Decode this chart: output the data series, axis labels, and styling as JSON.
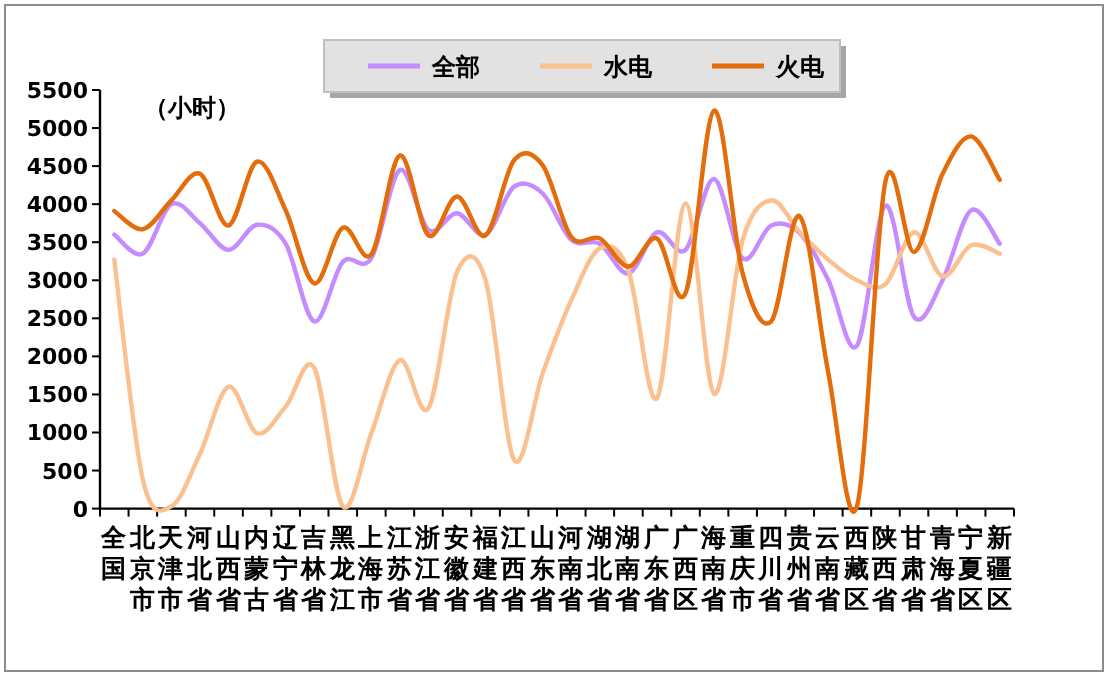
{
  "chart_data": {
    "type": "line",
    "annotations": [
      "（小时）"
    ],
    "categories": [
      "全国",
      "北京市",
      "天津市",
      "河北省",
      "山西省",
      "内蒙古",
      "辽宁省",
      "吉林省",
      "黑龙江",
      "上海市",
      "江苏省",
      "浙江省",
      "安徽省",
      "福建省",
      "江西省",
      "山东省",
      "河南省",
      "湖北省",
      "湖南省",
      "广东省",
      "广西区",
      "海南省",
      "重庆市",
      "四川省",
      "贵州省",
      "云南省",
      "西藏区",
      "陕西省",
      "甘肃省",
      "青海省",
      "宁夏区",
      "新疆区"
    ],
    "series": [
      {
        "name": "全部",
        "color": "#c58cff",
        "values": [
          3600,
          3350,
          4000,
          3750,
          3400,
          3730,
          3480,
          2460,
          3240,
          3290,
          4450,
          3660,
          3880,
          3600,
          4230,
          4140,
          3530,
          3480,
          3090,
          3630,
          3400,
          4330,
          3290,
          3720,
          3620,
          3000,
          2140,
          3980,
          2520,
          3000,
          3920,
          3480
        ]
      },
      {
        "name": "水电",
        "color": "#fbc08f",
        "values": [
          3270,
          380,
          30,
          720,
          1600,
          990,
          1340,
          1850,
          30,
          990,
          1950,
          1320,
          3110,
          3000,
          640,
          1780,
          2740,
          3420,
          3130,
          1450,
          4010,
          1510,
          3530,
          4050,
          3630,
          3270,
          3000,
          2950,
          3630,
          3050,
          3460,
          3350
        ]
      },
      {
        "name": "火电",
        "color": "#e46c0a",
        "values": [
          3910,
          3670,
          4050,
          4400,
          3720,
          4560,
          3920,
          2960,
          3690,
          3340,
          4640,
          3590,
          4100,
          3590,
          4580,
          4510,
          3570,
          3550,
          3180,
          3550,
          2830,
          5230,
          3090,
          2460,
          3840,
          1780,
          30,
          4300,
          3370,
          4400,
          4890,
          4320
        ]
      }
    ],
    "ylim": [
      0,
      5500
    ],
    "yticks": [
      0,
      500,
      1000,
      1500,
      2000,
      2500,
      3000,
      3500,
      4000,
      4500,
      5000,
      5500
    ],
    "grid": false,
    "legend": "top",
    "marker": "none",
    "line_style": "solid"
  }
}
